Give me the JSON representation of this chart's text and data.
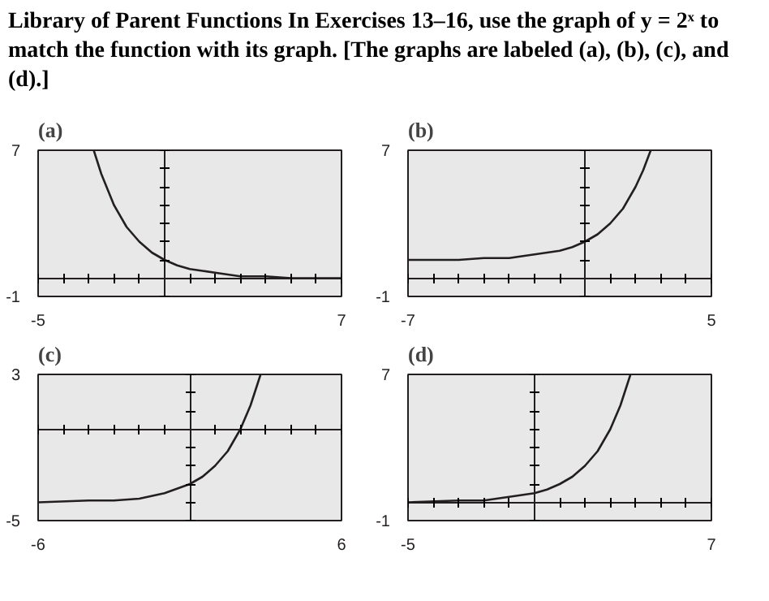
{
  "chart_data": [
    {
      "type": "line",
      "title": "(a)",
      "annotations": [
        "Library of Parent Functions    In Exercises 13–16, use the graph of y = 2ˣ to match the function with its graph. [The graphs are labeled (a), (b), (c), and (d).]"
      ],
      "x": [
        -2.8,
        -2.5,
        -2,
        -1.5,
        -1,
        -0.5,
        0,
        0.5,
        1,
        1.5,
        2,
        3,
        4,
        5,
        7
      ],
      "series": [
        {
          "color": "#231f20",
          "values": [
            7,
            5.7,
            4,
            2.8,
            2,
            1.4,
            1,
            0.7,
            0.5,
            0.4,
            0.3,
            0.1,
            0.1,
            0,
            0
          ]
        }
      ],
      "xlim": [
        -5,
        7
      ],
      "ylim": [
        -1,
        7
      ],
      "xticks": [
        -5,
        {
          "value": -4,
          "label": null
        },
        {
          "value": -3,
          "label": null
        },
        {
          "value": -2,
          "label": null
        },
        {
          "value": -1,
          "label": null
        },
        {
          "value": 1,
          "label": null
        },
        {
          "value": 2,
          "label": null
        },
        {
          "value": 3,
          "label": null
        },
        {
          "value": 4,
          "label": null
        },
        {
          "value": 5,
          "label": null
        },
        {
          "value": 6,
          "label": null
        },
        7
      ],
      "yticks": [
        -1,
        {
          "value": 1,
          "label": null
        },
        {
          "value": 2,
          "label": null
        },
        {
          "value": 3,
          "label": null
        },
        {
          "value": 4,
          "label": null
        },
        {
          "value": 5,
          "label": null
        },
        {
          "value": 6,
          "label": null
        },
        7
      ],
      "marker": "none",
      "line_style": "solid"
    },
    {
      "type": "line",
      "title": "(b)",
      "x": [
        -7,
        -5,
        -4,
        -3,
        -2,
        -1,
        -0.5,
        0,
        0.5,
        1,
        1.5,
        2,
        2.3,
        2.6
      ],
      "series": [
        {
          "color": "#231f20",
          "values": [
            1,
            1,
            1.1,
            1.1,
            1.3,
            1.5,
            1.7,
            2,
            2.4,
            3,
            3.8,
            5,
            5.9,
            7
          ]
        }
      ],
      "xlim": [
        -7,
        5
      ],
      "ylim": [
        -1,
        7
      ],
      "xticks": [
        -7,
        {
          "value": -6,
          "label": null
        },
        {
          "value": -5,
          "label": null
        },
        {
          "value": -4,
          "label": null
        },
        {
          "value": -3,
          "label": null
        },
        {
          "value": -2,
          "label": null
        },
        {
          "value": -1,
          "label": null
        },
        {
          "value": 1,
          "label": null
        },
        {
          "value": 2,
          "label": null
        },
        {
          "value": 3,
          "label": null
        },
        {
          "value": 4,
          "label": null
        },
        5
      ],
      "yticks": [
        -1,
        {
          "value": 1,
          "label": null
        },
        {
          "value": 2,
          "label": null
        },
        {
          "value": 3,
          "label": null
        },
        {
          "value": 4,
          "label": null
        },
        {
          "value": 5,
          "label": null
        },
        {
          "value": 6,
          "label": null
        },
        7
      ],
      "marker": "none",
      "line_style": "solid"
    },
    {
      "type": "line",
      "title": "(c)",
      "x": [
        -6,
        -4,
        -3,
        -2,
        -1,
        0,
        0.5,
        1,
        1.5,
        2,
        2.4,
        2.8
      ],
      "series": [
        {
          "color": "#231f20",
          "values": [
            -4,
            -3.9,
            -3.9,
            -3.8,
            -3.5,
            -3,
            -2.6,
            -2,
            -1.2,
            0,
            1.3,
            3
          ]
        }
      ],
      "xlim": [
        -6,
        6
      ],
      "ylim": [
        -5,
        3
      ],
      "xticks": [
        -6,
        {
          "value": -5,
          "label": null
        },
        {
          "value": -4,
          "label": null
        },
        {
          "value": -3,
          "label": null
        },
        {
          "value": -2,
          "label": null
        },
        {
          "value": -1,
          "label": null
        },
        {
          "value": 1,
          "label": null
        },
        {
          "value": 2,
          "label": null
        },
        {
          "value": 3,
          "label": null
        },
        {
          "value": 4,
          "label": null
        },
        {
          "value": 5,
          "label": null
        },
        6
      ],
      "yticks": [
        -5,
        {
          "value": -4,
          "label": null
        },
        {
          "value": -3,
          "label": null
        },
        {
          "value": -2,
          "label": null
        },
        {
          "value": -1,
          "label": null
        },
        {
          "value": 1,
          "label": null
        },
        {
          "value": 2,
          "label": null
        },
        3
      ],
      "marker": "none",
      "line_style": "solid"
    },
    {
      "type": "line",
      "title": "(d)",
      "x": [
        -5,
        -3,
        -2,
        -1,
        0,
        0.5,
        1,
        1.5,
        2,
        2.5,
        3,
        3.4,
        3.8
      ],
      "series": [
        {
          "color": "#231f20",
          "values": [
            0,
            0.1,
            0.1,
            0.3,
            0.5,
            0.7,
            1,
            1.4,
            2,
            2.8,
            4,
            5.3,
            7
          ]
        }
      ],
      "xlim": [
        -5,
        7
      ],
      "ylim": [
        -1,
        7
      ],
      "xticks": [
        -5,
        {
          "value": -4,
          "label": null
        },
        {
          "value": -3,
          "label": null
        },
        {
          "value": -2,
          "label": null
        },
        {
          "value": -1,
          "label": null
        },
        {
          "value": 1,
          "label": null
        },
        {
          "value": 2,
          "label": null
        },
        {
          "value": 3,
          "label": null
        },
        {
          "value": 4,
          "label": null
        },
        {
          "value": 5,
          "label": null
        },
        {
          "value": 6,
          "label": null
        },
        7
      ],
      "yticks": [
        -1,
        {
          "value": 1,
          "label": null
        },
        {
          "value": 2,
          "label": null
        },
        {
          "value": 3,
          "label": null
        },
        {
          "value": 4,
          "label": null
        },
        {
          "value": 5,
          "label": null
        },
        {
          "value": 6,
          "label": null
        },
        7
      ],
      "marker": "none",
      "line_style": "solid"
    }
  ]
}
